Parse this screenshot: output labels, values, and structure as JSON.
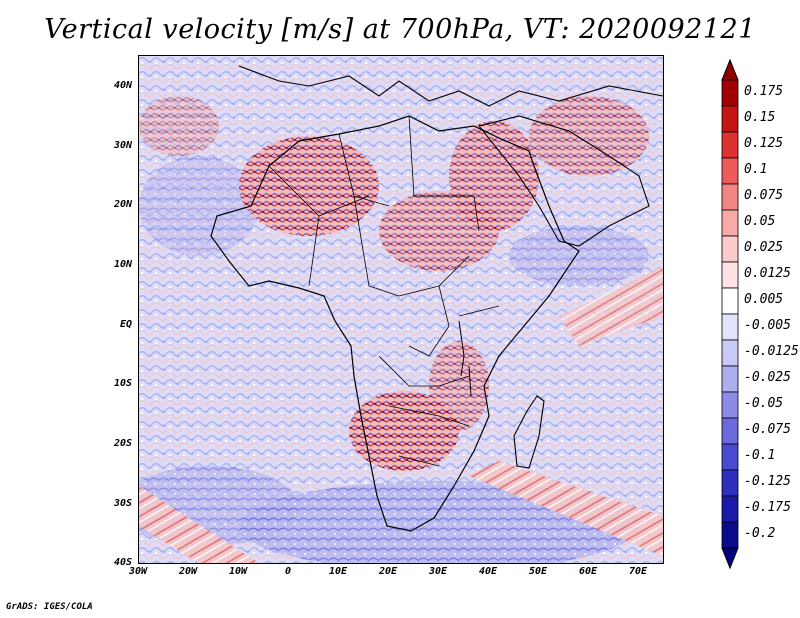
{
  "title": "Vertical velocity [m/s] at 700hPa, VT: 2020092121",
  "credit": "GrADS: IGES/COLA",
  "map": {
    "lat_labels": [
      "40N",
      "30N",
      "20N",
      "10N",
      "EQ",
      "10S",
      "20S",
      "30S",
      "40S"
    ],
    "lon_labels": [
      "30W",
      "20W",
      "10W",
      "0",
      "10E",
      "20E",
      "30E",
      "40E",
      "50E",
      "60E",
      "70E"
    ]
  },
  "colorbar": {
    "levels": [
      {
        "label": "0.175",
        "color": "#a00000"
      },
      {
        "label": "0.15",
        "color": "#c41414"
      },
      {
        "label": "0.125",
        "color": "#dc3232"
      },
      {
        "label": "0.1",
        "color": "#ef5a5a"
      },
      {
        "label": "0.075",
        "color": "#f48585"
      },
      {
        "label": "0.05",
        "color": "#f8a9a9"
      },
      {
        "label": "0.025",
        "color": "#fbcaca"
      },
      {
        "label": "0.0125",
        "color": "#fde3e3"
      },
      {
        "label": "0.005",
        "color": "#ffffff"
      },
      {
        "label": "-0.005",
        "color": "#e3e3fb"
      },
      {
        "label": "-0.0125",
        "color": "#c9c9f5"
      },
      {
        "label": "-0.025",
        "color": "#aeaeef"
      },
      {
        "label": "-0.05",
        "color": "#8c8ce6"
      },
      {
        "label": "-0.075",
        "color": "#6a6adb"
      },
      {
        "label": "-0.1",
        "color": "#4a4acf"
      },
      {
        "label": "-0.125",
        "color": "#2e2ebf"
      },
      {
        "label": "-0.175",
        "color": "#1a1aa8"
      },
      {
        "label": "-0.2",
        "color": "#0a0a8c"
      }
    ],
    "top_arrow_color": "#8c0000",
    "bottom_arrow_color": "#000080"
  }
}
